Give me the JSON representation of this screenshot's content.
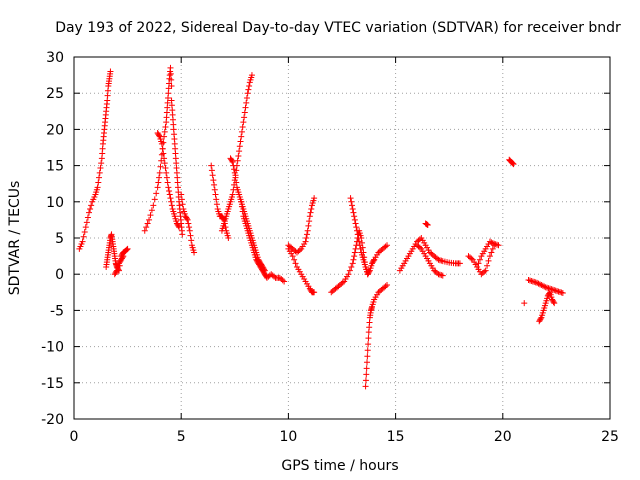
{
  "chart_data": {
    "type": "scatter",
    "title": "Day 193 of 2022, Sidereal Day-to-day VTEC variation (SDTVAR) for receiver bndr",
    "xlabel": "GPS time / hours",
    "ylabel": "SDTVAR / TECUs",
    "xlim": [
      0,
      25
    ],
    "ylim": [
      -20,
      30
    ],
    "xticks": [
      0,
      5,
      10,
      15,
      20,
      25
    ],
    "yticks": [
      -20,
      -15,
      -10,
      -5,
      0,
      5,
      10,
      15,
      20,
      25,
      30
    ],
    "grid": true,
    "marker": "+",
    "color": "#ff0000",
    "series": [
      {
        "name": "s1",
        "x": [
          0.25,
          0.4,
          0.55,
          0.7,
          0.85,
          1.0,
          1.1,
          1.2,
          1.3,
          1.35,
          1.4,
          1.45,
          1.5,
          1.55,
          1.6,
          1.65,
          1.7
        ],
        "y": [
          3.5,
          4.5,
          6.5,
          8.5,
          10.0,
          11.0,
          12.0,
          14.0,
          16.0,
          18.0,
          19.5,
          21.0,
          22.5,
          24.0,
          26.0,
          27.0,
          28.0
        ]
      },
      {
        "name": "s2",
        "x": [
          1.5,
          1.55,
          1.6,
          1.65,
          1.7,
          1.75,
          1.8,
          1.85,
          1.9,
          1.95,
          2.0,
          2.1,
          2.2,
          2.3,
          2.4,
          2.5
        ],
        "y": [
          1.0,
          2.0,
          3.0,
          4.0,
          5.0,
          5.5,
          4.5,
          3.5,
          2.5,
          1.5,
          1.0,
          0.5,
          2.5,
          3.0,
          3.2,
          3.5
        ]
      },
      {
        "name": "s3",
        "x": [
          1.9,
          2.0,
          2.1,
          2.2,
          2.3
        ],
        "y": [
          0.0,
          0.5,
          1.5,
          2.0,
          2.5
        ]
      },
      {
        "name": "s4",
        "x": [
          3.3,
          3.5,
          3.7,
          3.9,
          4.0,
          4.1,
          4.2,
          4.3,
          4.35,
          4.4,
          4.45,
          4.5,
          4.55
        ],
        "y": [
          6.0,
          7.5,
          9.5,
          12.0,
          14.0,
          16.5,
          19.0,
          21.0,
          23.0,
          25.0,
          27.0,
          28.5,
          26.0
        ]
      },
      {
        "name": "s5",
        "x": [
          4.55,
          4.6,
          4.65,
          4.7,
          4.75,
          4.8,
          4.85,
          4.9,
          4.95,
          5.0,
          5.05
        ],
        "y": [
          24.0,
          22.0,
          20.0,
          18.0,
          16.0,
          14.0,
          12.0,
          10.0,
          8.5,
          7.0,
          5.5
        ]
      },
      {
        "name": "s6",
        "x": [
          3.9,
          4.0,
          4.1,
          4.2,
          4.3,
          4.4,
          4.5,
          4.6,
          4.7,
          4.8,
          4.9
        ],
        "y": [
          19.5,
          19.0,
          18.0,
          16.0,
          14.0,
          12.0,
          10.5,
          9.0,
          8.0,
          7.0,
          6.5
        ]
      },
      {
        "name": "s7",
        "x": [
          5.0,
          5.1,
          5.2,
          5.3,
          5.4,
          5.5,
          5.6
        ],
        "y": [
          11.0,
          9.0,
          8.0,
          7.5,
          6.0,
          4.0,
          3.0
        ]
      },
      {
        "name": "s8",
        "x": [
          6.4,
          6.5,
          6.6,
          6.7,
          6.8,
          6.9,
          7.0,
          7.1,
          7.2
        ],
        "y": [
          15.0,
          13.0,
          11.0,
          9.0,
          8.0,
          8.0,
          7.5,
          6.0,
          5.0
        ]
      },
      {
        "name": "s9",
        "x": [
          6.9,
          7.0,
          7.1,
          7.2,
          7.3,
          7.4,
          7.5,
          7.6,
          7.7,
          7.8,
          7.9,
          8.0,
          8.1,
          8.2,
          8.3
        ],
        "y": [
          6.0,
          7.0,
          8.0,
          9.0,
          10.0,
          11.0,
          13.0,
          15.0,
          17.0,
          19.0,
          21.0,
          23.0,
          25.0,
          26.5,
          27.5
        ]
      },
      {
        "name": "s10",
        "x": [
          7.3,
          7.4,
          7.5,
          7.6,
          7.7,
          7.8,
          7.9,
          8.0,
          8.1,
          8.2,
          8.3,
          8.4,
          8.5,
          8.6,
          8.7,
          8.8,
          8.9
        ],
        "y": [
          16.0,
          15.5,
          14.0,
          12.0,
          11.0,
          10.0,
          9.0,
          8.0,
          7.0,
          6.0,
          5.0,
          4.0,
          3.0,
          2.0,
          1.5,
          1.0,
          0.5
        ]
      },
      {
        "name": "s11",
        "x": [
          7.8,
          7.9,
          8.0,
          8.1,
          8.2,
          8.3,
          8.4,
          8.5,
          8.6,
          8.7,
          8.8,
          8.9,
          9.0,
          9.2,
          9.4,
          9.6,
          9.8
        ],
        "y": [
          10.0,
          8.0,
          7.0,
          6.0,
          5.0,
          4.0,
          3.0,
          2.0,
          1.5,
          1.0,
          0.5,
          0.0,
          -0.5,
          0.0,
          -0.5,
          -0.5,
          -1.0
        ]
      },
      {
        "name": "s12",
        "x": [
          10.0,
          10.2,
          10.4,
          10.6,
          10.8,
          11.0,
          11.1,
          11.2
        ],
        "y": [
          3.5,
          2.5,
          1.0,
          0.0,
          -1.0,
          -2.0,
          -2.5,
          -2.5
        ]
      },
      {
        "name": "s13",
        "x": [
          10.0,
          10.2,
          10.4,
          10.6,
          10.8,
          10.9,
          11.0,
          11.1,
          11.2
        ],
        "y": [
          4.0,
          3.5,
          3.0,
          3.5,
          4.5,
          6.0,
          8.0,
          9.5,
          10.5
        ]
      },
      {
        "name": "s14",
        "x": [
          12.0,
          12.2,
          12.4,
          12.6,
          12.8,
          13.0,
          13.1,
          13.2,
          13.3,
          13.4,
          13.5,
          13.6,
          13.7
        ],
        "y": [
          -2.5,
          -2.0,
          -1.5,
          -1.0,
          0.0,
          1.5,
          3.0,
          4.5,
          6.0,
          5.0,
          3.0,
          1.0,
          0.0
        ]
      },
      {
        "name": "s15",
        "x": [
          12.9,
          13.0,
          13.1,
          13.2,
          13.3,
          13.4,
          13.5,
          13.6,
          13.7,
          13.8,
          13.9,
          14.0
        ],
        "y": [
          10.5,
          9.0,
          7.5,
          6.0,
          4.5,
          3.0,
          2.0,
          1.0,
          0.0,
          0.5,
          1.5,
          2.0
        ]
      },
      {
        "name": "s16",
        "x": [
          13.6,
          13.65,
          13.7,
          13.75,
          13.8,
          13.85,
          13.9,
          14.0,
          14.2,
          14.4,
          14.6
        ],
        "y": [
          -15.5,
          -13.0,
          -10.5,
          -8.0,
          -6.0,
          -5.0,
          -4.5,
          -3.5,
          -2.5,
          -2.0,
          -1.5
        ]
      },
      {
        "name": "s17",
        "x": [
          14.0,
          14.2,
          14.4,
          14.6
        ],
        "y": [
          2.0,
          3.0,
          3.5,
          4.0
        ]
      },
      {
        "name": "s18",
        "x": [
          15.2,
          15.4,
          15.6,
          15.8,
          16.0,
          16.2,
          16.4,
          16.6,
          16.8,
          17.0,
          17.2,
          17.5,
          17.8,
          18.0
        ],
        "y": [
          0.5,
          1.5,
          2.5,
          3.5,
          4.5,
          5.0,
          4.0,
          3.0,
          2.5,
          2.0,
          1.8,
          1.6,
          1.5,
          1.5
        ]
      },
      {
        "name": "s19",
        "x": [
          16.0,
          16.2,
          16.4,
          16.6,
          16.8,
          17.0,
          17.2
        ],
        "y": [
          4.0,
          3.5,
          2.5,
          1.5,
          0.5,
          0.0,
          -0.2
        ]
      },
      {
        "name": "s20",
        "x": [
          16.4,
          16.5
        ],
        "y": [
          7.0,
          6.8
        ]
      },
      {
        "name": "s21",
        "x": [
          18.4,
          18.6,
          18.8,
          19.0,
          19.2,
          19.4,
          19.6
        ],
        "y": [
          2.5,
          2.0,
          1.0,
          0.0,
          0.5,
          2.5,
          4.0
        ]
      },
      {
        "name": "s22",
        "x": [
          18.8,
          19.0,
          19.2,
          19.4,
          19.6,
          19.8
        ],
        "y": [
          1.0,
          2.5,
          3.5,
          4.5,
          4.2,
          4.0
        ]
      },
      {
        "name": "s23",
        "x": [
          20.3,
          20.4,
          20.5
        ],
        "y": [
          15.8,
          15.5,
          15.2
        ]
      },
      {
        "name": "s24",
        "x": [
          21.2,
          21.4,
          21.6,
          21.8,
          22.0,
          22.2,
          22.4,
          22.6,
          22.8
        ],
        "y": [
          -0.8,
          -1.0,
          -1.2,
          -1.5,
          -1.8,
          -2.0,
          -2.2,
          -2.4,
          -2.6
        ]
      },
      {
        "name": "s25",
        "x": [
          21.7,
          21.8,
          21.9,
          22.0,
          22.1,
          22.2,
          22.3,
          22.4
        ],
        "y": [
          -6.5,
          -6.0,
          -5.0,
          -4.0,
          -3.0,
          -2.5,
          -3.5,
          -4.0
        ]
      },
      {
        "name": "s26",
        "x": [
          21.0
        ],
        "y": [
          -4.0
        ]
      }
    ]
  }
}
